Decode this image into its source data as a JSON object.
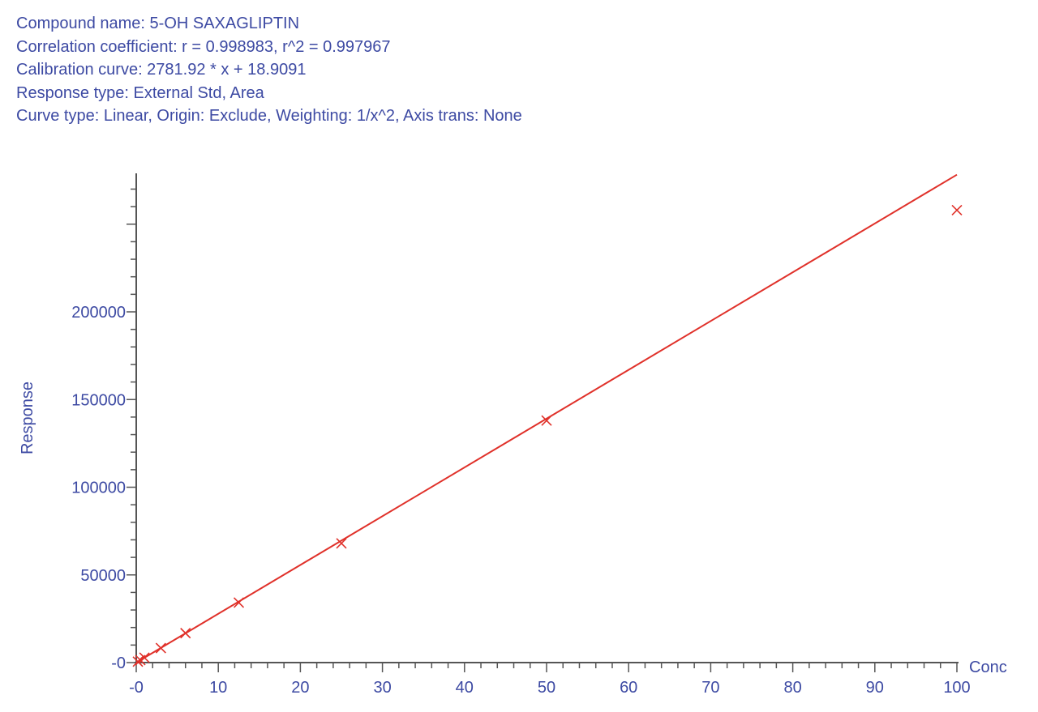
{
  "header": {
    "compound": "Compound name: 5-OH SAXAGLIPTIN",
    "correlation": "Correlation coefficient: r = 0.998983, r^2 = 0.997967",
    "calibration": "Calibration curve: 2781.92 * x + 18.9091",
    "response_type": "Response type: External Std, Area",
    "curve_type": "Curve type: Linear, Origin: Exclude, Weighting: 1/x^2, Axis trans: None"
  },
  "colors": {
    "text": "#3d4aa3",
    "axis": "#555555",
    "fit_line": "#e0312a",
    "points": "#e0312a"
  },
  "chart_data": {
    "type": "scatter",
    "xlabel": "Conc",
    "ylabel": "Response",
    "xlim": [
      0,
      100
    ],
    "ylim": [
      0,
      280000
    ],
    "x_ticks": [
      0,
      10,
      20,
      30,
      40,
      50,
      60,
      70,
      80,
      90,
      100
    ],
    "x_tick_labels": [
      "-0",
      "10",
      "20",
      "30",
      "40",
      "50",
      "60",
      "70",
      "80",
      "90",
      "100"
    ],
    "y_ticks": [
      0,
      50000,
      100000,
      150000,
      200000
    ],
    "y_tick_labels": [
      "-0",
      "50000",
      "100000",
      "150000",
      "200000"
    ],
    "grid": false,
    "fit": {
      "slope": 2781.92,
      "intercept": 18.9091,
      "x_range": [
        0,
        100
      ]
    },
    "series": [
      {
        "marker": "x",
        "x": [
          0.2,
          0.5,
          1.0,
          3.0,
          6.0,
          12.5,
          25,
          50,
          100
        ],
        "y": [
          550,
          1400,
          2800,
          8300,
          16800,
          34200,
          68000,
          138000,
          258000
        ]
      }
    ]
  }
}
